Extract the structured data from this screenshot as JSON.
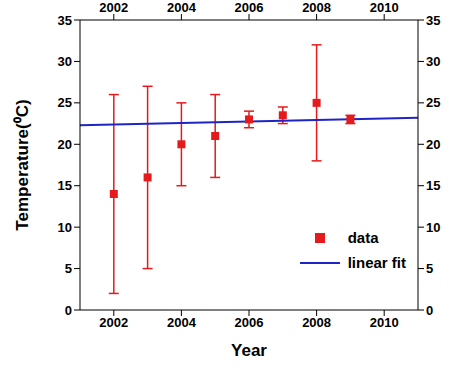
{
  "chart_data": {
    "type": "scatter",
    "x_label": "Year",
    "y_label": "Temperature(⁰C)",
    "xlim": [
      2001,
      2011
    ],
    "xticks": [
      2002,
      2004,
      2006,
      2008,
      2010
    ],
    "ylim": [
      0,
      35
    ],
    "yticks": [
      0,
      5,
      10,
      15,
      20,
      25,
      30,
      35
    ],
    "legend": "lower right",
    "series": [
      {
        "name": "data",
        "type": "scatter",
        "color": "#e41a1c",
        "marker": "square",
        "x": [
          2002,
          2003,
          2004,
          2005,
          2006,
          2007,
          2008,
          2009
        ],
        "values": [
          14,
          16,
          20,
          21,
          23,
          23.5,
          25,
          23
        ],
        "errors": [
          12,
          11,
          5,
          5,
          1,
          1,
          7,
          0.5
        ]
      },
      {
        "name": "linear fit",
        "type": "line",
        "color": "#1f24c8",
        "line_style": "solid",
        "x": [
          2001,
          2011
        ],
        "values": [
          22.3,
          23.2
        ]
      }
    ]
  }
}
